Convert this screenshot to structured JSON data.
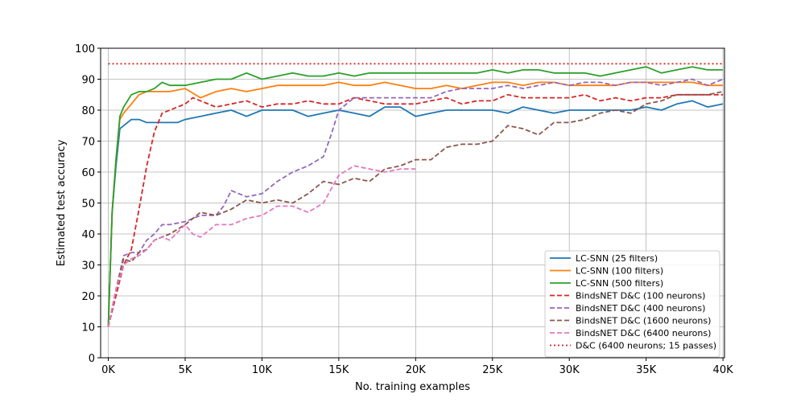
{
  "chart_data": {
    "type": "line",
    "xlabel": "No. training examples",
    "ylabel": "Estimated test accuracy",
    "xlim": [
      0,
      40000
    ],
    "ylim": [
      0,
      100
    ],
    "xticks": [
      0,
      5000,
      10000,
      15000,
      20000,
      25000,
      30000,
      35000,
      40000
    ],
    "xtick_labels": [
      "0K",
      "5K",
      "10K",
      "15K",
      "20K",
      "25K",
      "30K",
      "35K",
      "40K"
    ],
    "yticks": [
      0,
      10,
      20,
      30,
      40,
      50,
      60,
      70,
      80,
      90,
      100
    ],
    "ytick_labels": [
      "0",
      "10",
      "20",
      "30",
      "40",
      "50",
      "60",
      "70",
      "80",
      "90",
      "100"
    ],
    "grid": true,
    "legend_position": "bottom-right",
    "series": [
      {
        "name": "LC-SNN (25 filters)",
        "color": "#1f77b4",
        "style": "solid",
        "points": [
          [
            0,
            10
          ],
          [
            250,
            47
          ],
          [
            500,
            62
          ],
          [
            750,
            74
          ],
          [
            1000,
            75
          ],
          [
            1500,
            77
          ],
          [
            2000,
            77
          ],
          [
            2500,
            76
          ],
          [
            3000,
            76
          ],
          [
            4000,
            76
          ],
          [
            4500,
            76
          ],
          [
            5000,
            77
          ],
          [
            6000,
            78
          ],
          [
            7000,
            79
          ],
          [
            8000,
            80
          ],
          [
            9000,
            78
          ],
          [
            10000,
            80
          ],
          [
            11000,
            80
          ],
          [
            12000,
            80
          ],
          [
            13000,
            78
          ],
          [
            14000,
            79
          ],
          [
            15000,
            80
          ],
          [
            16000,
            79
          ],
          [
            17000,
            78
          ],
          [
            18000,
            81
          ],
          [
            19000,
            81
          ],
          [
            20000,
            78
          ],
          [
            21000,
            79
          ],
          [
            22000,
            80
          ],
          [
            23000,
            80
          ],
          [
            24000,
            80
          ],
          [
            25000,
            80
          ],
          [
            26000,
            79
          ],
          [
            27000,
            81
          ],
          [
            28000,
            80
          ],
          [
            29000,
            79
          ],
          [
            30000,
            80
          ],
          [
            31000,
            80
          ],
          [
            32000,
            80
          ],
          [
            33000,
            80
          ],
          [
            34000,
            80
          ],
          [
            35000,
            81
          ],
          [
            36000,
            80
          ],
          [
            37000,
            82
          ],
          [
            38000,
            83
          ],
          [
            39000,
            81
          ],
          [
            40000,
            82
          ]
        ]
      },
      {
        "name": "LC-SNN (100 filters)",
        "color": "#ff7f0e",
        "style": "solid",
        "points": [
          [
            0,
            10
          ],
          [
            250,
            47
          ],
          [
            500,
            64
          ],
          [
            750,
            77
          ],
          [
            1000,
            79
          ],
          [
            1500,
            82
          ],
          [
            2000,
            85
          ],
          [
            2500,
            86
          ],
          [
            3000,
            86
          ],
          [
            4000,
            86
          ],
          [
            5000,
            87
          ],
          [
            6000,
            84
          ],
          [
            7000,
            86
          ],
          [
            8000,
            87
          ],
          [
            9000,
            86
          ],
          [
            10000,
            87
          ],
          [
            11000,
            88
          ],
          [
            12000,
            88
          ],
          [
            13000,
            88
          ],
          [
            14000,
            88
          ],
          [
            15000,
            89
          ],
          [
            16000,
            88
          ],
          [
            17000,
            88
          ],
          [
            18000,
            89
          ],
          [
            19000,
            88
          ],
          [
            20000,
            87
          ],
          [
            21000,
            87
          ],
          [
            22000,
            88
          ],
          [
            23000,
            87
          ],
          [
            24000,
            88
          ],
          [
            25000,
            89
          ],
          [
            26000,
            89
          ],
          [
            27000,
            88
          ],
          [
            28000,
            89
          ],
          [
            29000,
            89
          ],
          [
            30000,
            88
          ],
          [
            31000,
            88
          ],
          [
            32000,
            88
          ],
          [
            33000,
            88
          ],
          [
            34000,
            89
          ],
          [
            35000,
            89
          ],
          [
            36000,
            89
          ],
          [
            37000,
            89
          ],
          [
            38000,
            89
          ],
          [
            39000,
            88
          ],
          [
            40000,
            88
          ]
        ]
      },
      {
        "name": "LC-SNN (500 filters)",
        "color": "#2ca02c",
        "style": "solid",
        "points": [
          [
            0,
            10
          ],
          [
            250,
            47
          ],
          [
            500,
            64
          ],
          [
            750,
            78
          ],
          [
            1000,
            81
          ],
          [
            1500,
            85
          ],
          [
            2000,
            86
          ],
          [
            2500,
            86
          ],
          [
            3000,
            87
          ],
          [
            3500,
            89
          ],
          [
            4000,
            88
          ],
          [
            5000,
            88
          ],
          [
            6000,
            89
          ],
          [
            7000,
            90
          ],
          [
            8000,
            90
          ],
          [
            9000,
            92
          ],
          [
            10000,
            90
          ],
          [
            11000,
            91
          ],
          [
            12000,
            92
          ],
          [
            13000,
            91
          ],
          [
            14000,
            91
          ],
          [
            15000,
            92
          ],
          [
            16000,
            91
          ],
          [
            17000,
            92
          ],
          [
            18000,
            92
          ],
          [
            19000,
            92
          ],
          [
            20000,
            92
          ],
          [
            21000,
            92
          ],
          [
            22000,
            92
          ],
          [
            23000,
            92
          ],
          [
            24000,
            92
          ],
          [
            25000,
            93
          ],
          [
            26000,
            92
          ],
          [
            27000,
            93
          ],
          [
            28000,
            93
          ],
          [
            29000,
            92
          ],
          [
            30000,
            92
          ],
          [
            31000,
            92
          ],
          [
            32000,
            91
          ],
          [
            33000,
            92
          ],
          [
            34000,
            93
          ],
          [
            35000,
            94
          ],
          [
            36000,
            92
          ],
          [
            37000,
            93
          ],
          [
            38000,
            94
          ],
          [
            39000,
            93
          ],
          [
            40000,
            93
          ]
        ]
      },
      {
        "name": "BindsNET D&C (100 neurons)",
        "color": "#d62728",
        "style": "dashed",
        "points": [
          [
            0,
            10
          ],
          [
            500,
            20
          ],
          [
            1000,
            30
          ],
          [
            1500,
            35
          ],
          [
            2000,
            48
          ],
          [
            2500,
            62
          ],
          [
            3000,
            73
          ],
          [
            3500,
            79
          ],
          [
            4000,
            80
          ],
          [
            5000,
            82
          ],
          [
            5500,
            84
          ],
          [
            6000,
            83
          ],
          [
            7000,
            81
          ],
          [
            8000,
            82
          ],
          [
            9000,
            83
          ],
          [
            10000,
            81
          ],
          [
            11000,
            82
          ],
          [
            12000,
            82
          ],
          [
            13000,
            83
          ],
          [
            14000,
            82
          ],
          [
            15000,
            82
          ],
          [
            16000,
            84
          ],
          [
            17000,
            83
          ],
          [
            18000,
            82
          ],
          [
            19000,
            82
          ],
          [
            20000,
            82
          ],
          [
            21000,
            83
          ],
          [
            22000,
            84
          ],
          [
            23000,
            82
          ],
          [
            24000,
            83
          ],
          [
            25000,
            83
          ],
          [
            26000,
            85
          ],
          [
            27000,
            84
          ],
          [
            28000,
            84
          ],
          [
            29000,
            84
          ],
          [
            30000,
            84
          ],
          [
            31000,
            85
          ],
          [
            32000,
            83
          ],
          [
            33000,
            84
          ],
          [
            34000,
            83
          ],
          [
            35000,
            84
          ],
          [
            36000,
            84
          ],
          [
            37000,
            85
          ],
          [
            38000,
            85
          ],
          [
            39000,
            85
          ],
          [
            40000,
            85
          ]
        ]
      },
      {
        "name": "BindsNET D&C (400 neurons)",
        "color": "#9467bd",
        "style": "dashed",
        "points": [
          [
            0,
            10
          ],
          [
            500,
            22
          ],
          [
            1000,
            33
          ],
          [
            1500,
            34
          ],
          [
            2000,
            34
          ],
          [
            2500,
            38
          ],
          [
            3000,
            40
          ],
          [
            3500,
            43
          ],
          [
            4000,
            43
          ],
          [
            5000,
            44
          ],
          [
            6000,
            46
          ],
          [
            7000,
            46
          ],
          [
            7500,
            49
          ],
          [
            8000,
            54
          ],
          [
            9000,
            52
          ],
          [
            10000,
            53
          ],
          [
            11000,
            57
          ],
          [
            12000,
            60
          ],
          [
            13000,
            62
          ],
          [
            14000,
            65
          ],
          [
            14500,
            72
          ],
          [
            15000,
            80
          ],
          [
            16000,
            84
          ],
          [
            17000,
            84
          ],
          [
            18000,
            84
          ],
          [
            19000,
            84
          ],
          [
            20000,
            84
          ],
          [
            21000,
            84
          ],
          [
            22000,
            86
          ],
          [
            23000,
            87
          ],
          [
            24000,
            87
          ],
          [
            25000,
            87
          ],
          [
            26000,
            88
          ],
          [
            27000,
            87
          ],
          [
            28000,
            88
          ],
          [
            29000,
            89
          ],
          [
            30000,
            88
          ],
          [
            31000,
            89
          ],
          [
            32000,
            89
          ],
          [
            33000,
            88
          ],
          [
            34000,
            89
          ],
          [
            35000,
            89
          ],
          [
            36000,
            88
          ],
          [
            37000,
            89
          ],
          [
            38000,
            90
          ],
          [
            39000,
            88
          ],
          [
            40000,
            90
          ]
        ]
      },
      {
        "name": "BindsNET D&C (1600 neurons)",
        "color": "#8c564b",
        "style": "dashed",
        "points": [
          [
            0,
            10
          ],
          [
            500,
            22
          ],
          [
            1000,
            32
          ],
          [
            1500,
            31
          ],
          [
            2000,
            34
          ],
          [
            2500,
            35
          ],
          [
            3000,
            38
          ],
          [
            4000,
            40
          ],
          [
            5000,
            43
          ],
          [
            6000,
            47
          ],
          [
            7000,
            46
          ],
          [
            8000,
            48
          ],
          [
            9000,
            51
          ],
          [
            10000,
            50
          ],
          [
            11000,
            51
          ],
          [
            12000,
            50
          ],
          [
            13000,
            53
          ],
          [
            14000,
            57
          ],
          [
            15000,
            56
          ],
          [
            16000,
            58
          ],
          [
            17000,
            57
          ],
          [
            18000,
            61
          ],
          [
            19000,
            62
          ],
          [
            20000,
            64
          ],
          [
            21000,
            64
          ],
          [
            22000,
            68
          ],
          [
            23000,
            69
          ],
          [
            24000,
            69
          ],
          [
            25000,
            70
          ],
          [
            26000,
            75
          ],
          [
            27000,
            74
          ],
          [
            28000,
            72
          ],
          [
            29000,
            76
          ],
          [
            30000,
            76
          ],
          [
            31000,
            77
          ],
          [
            32000,
            79
          ],
          [
            33000,
            80
          ],
          [
            34000,
            79
          ],
          [
            35000,
            82
          ],
          [
            36000,
            83
          ],
          [
            37000,
            85
          ],
          [
            38000,
            85
          ],
          [
            39000,
            85
          ],
          [
            40000,
            86
          ]
        ]
      },
      {
        "name": "BindsNET D&C (6400 neurons)",
        "color": "#e377c2",
        "style": "dashed",
        "points": [
          [
            0,
            10
          ],
          [
            500,
            22
          ],
          [
            1000,
            30
          ],
          [
            1500,
            32
          ],
          [
            2000,
            33
          ],
          [
            2500,
            35
          ],
          [
            3000,
            38
          ],
          [
            3500,
            39
          ],
          [
            4000,
            38
          ],
          [
            5000,
            43
          ],
          [
            5500,
            40
          ],
          [
            6000,
            39
          ],
          [
            7000,
            43
          ],
          [
            8000,
            43
          ],
          [
            9000,
            45
          ],
          [
            10000,
            46
          ],
          [
            11000,
            49
          ],
          [
            12000,
            49
          ],
          [
            13000,
            47
          ],
          [
            14000,
            50
          ],
          [
            15000,
            59
          ],
          [
            16000,
            62
          ],
          [
            17000,
            61
          ],
          [
            18000,
            60
          ],
          [
            19000,
            61
          ],
          [
            20000,
            61
          ]
        ]
      },
      {
        "name": "D&C (6400 neurons; 15 passes)",
        "color": "#d62728",
        "style": "dotted",
        "points": [
          [
            0,
            95
          ],
          [
            40000,
            95
          ]
        ]
      }
    ]
  }
}
